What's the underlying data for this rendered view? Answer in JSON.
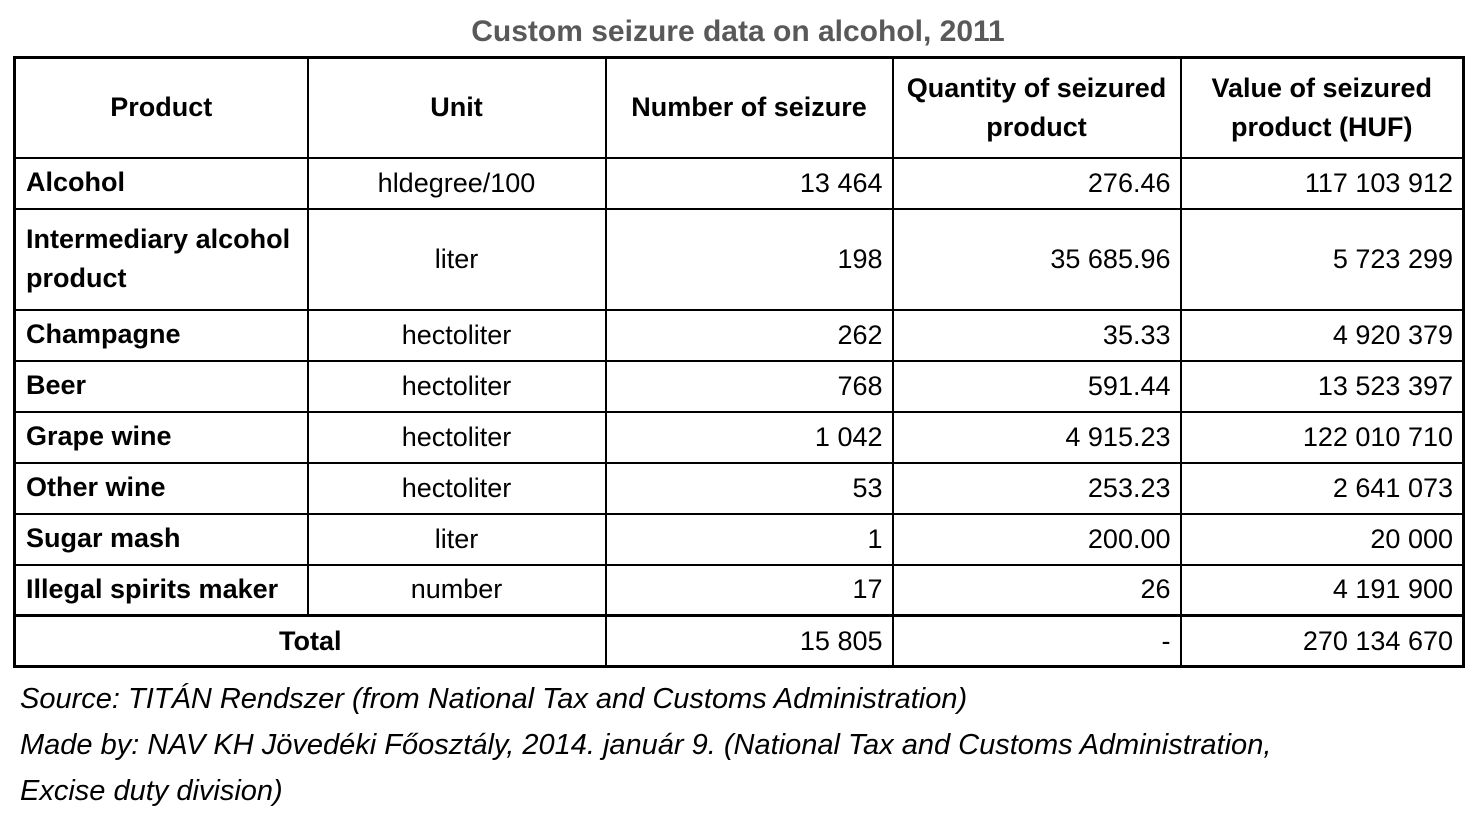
{
  "title": "Custom seizure data on alcohol, 2011",
  "table": {
    "headers": [
      "Product",
      "Unit",
      "Number of seizure",
      "Quantity of seizured product",
      "Value of seizured product (HUF)"
    ],
    "rows": [
      {
        "product": "Alcohol",
        "unit": "hldegree/100",
        "seizures": "13 464",
        "quantity": "276.46",
        "value": "117 103 912"
      },
      {
        "product": "Intermediary alcohol product",
        "unit": "liter",
        "seizures": "198",
        "quantity": "35 685.96",
        "value": "5 723 299"
      },
      {
        "product": "Champagne",
        "unit": "hectoliter",
        "seizures": "262",
        "quantity": "35.33",
        "value": "4 920 379"
      },
      {
        "product": "Beer",
        "unit": "hectoliter",
        "seizures": "768",
        "quantity": "591.44",
        "value": "13 523 397"
      },
      {
        "product": "Grape wine",
        "unit": "hectoliter",
        "seizures": "1 042",
        "quantity": "4 915.23",
        "value": "122 010 710"
      },
      {
        "product": "Other wine",
        "unit": "hectoliter",
        "seizures": "53",
        "quantity": "253.23",
        "value": "2 641 073"
      },
      {
        "product": "Sugar mash",
        "unit": "liter",
        "seizures": "1",
        "quantity": "200.00",
        "value": "20 000"
      },
      {
        "product": "Illegal spirits maker",
        "unit": "number",
        "seizures": "17",
        "quantity": "26",
        "value": "4 191 900"
      }
    ],
    "total": {
      "label": "Total",
      "seizures": "15 805",
      "quantity": "-",
      "value": "270 134 670"
    }
  },
  "footer": {
    "source": "Source: TITÁN Rendszer (from National Tax and Customs Administration)",
    "made_by_line1": "Made by: NAV KH Jövedéki Főosztály, 2014. január 9. (National Tax and Customs Administration,",
    "made_by_line2": "Excise duty division)"
  },
  "colors": {
    "title_text": "#595959",
    "body_text": "#000000",
    "border": "#000000",
    "background": "#ffffff"
  }
}
